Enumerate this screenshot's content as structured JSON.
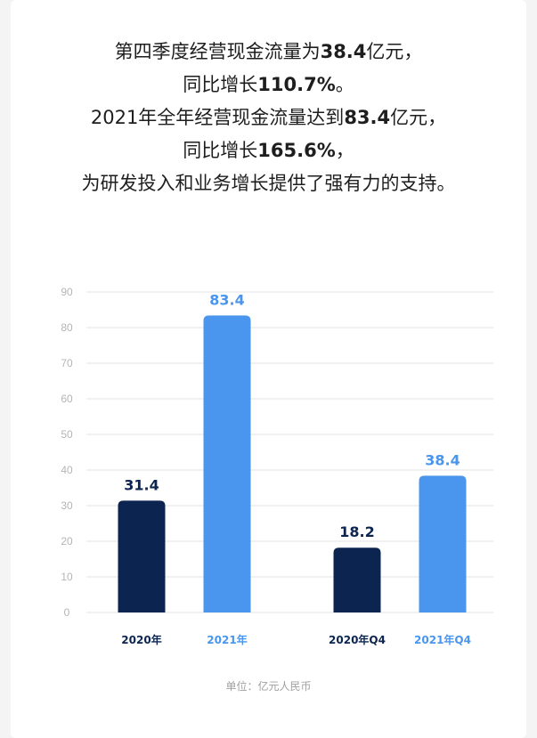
{
  "headline": {
    "line1_a": "第四季度经营现金流量为",
    "line1_num": "38.4",
    "line1_b": "亿元，",
    "line2_a": "同比增长",
    "line2_num": "110.7%",
    "line2_b": "。",
    "line3_a": "2021年全年经营现金流量达到",
    "line3_num": "83.4",
    "line3_b": "亿元，",
    "line4_a": "同比增长",
    "line4_num": "165.6%",
    "line4_b": "，",
    "line5": "为研发投入和业务增长提供了强有力的支持。"
  },
  "chart_data": {
    "type": "bar",
    "categories": [
      "2020年",
      "2021年",
      "2020年Q4",
      "2021年Q4"
    ],
    "values": [
      31.4,
      83.4,
      18.2,
      38.4
    ],
    "value_labels": [
      "31.4",
      "83.4",
      "18.2",
      "38.4"
    ],
    "ylim": [
      0,
      90
    ],
    "yticks": [
      0,
      10,
      20,
      30,
      40,
      50,
      60,
      70,
      80,
      90
    ],
    "grid": true,
    "bar_colors": [
      "#0b2550",
      "#4a96ee",
      "#0b2550",
      "#4a96ee"
    ],
    "category_label_colors": [
      "#0b2550",
      "#4a96ee",
      "#0b2550",
      "#4a96ee"
    ],
    "grid_color": "#e3e3e3",
    "tick_color": "#b5b5b5"
  },
  "footer": {
    "unit_label": "单位：亿元人民币"
  }
}
